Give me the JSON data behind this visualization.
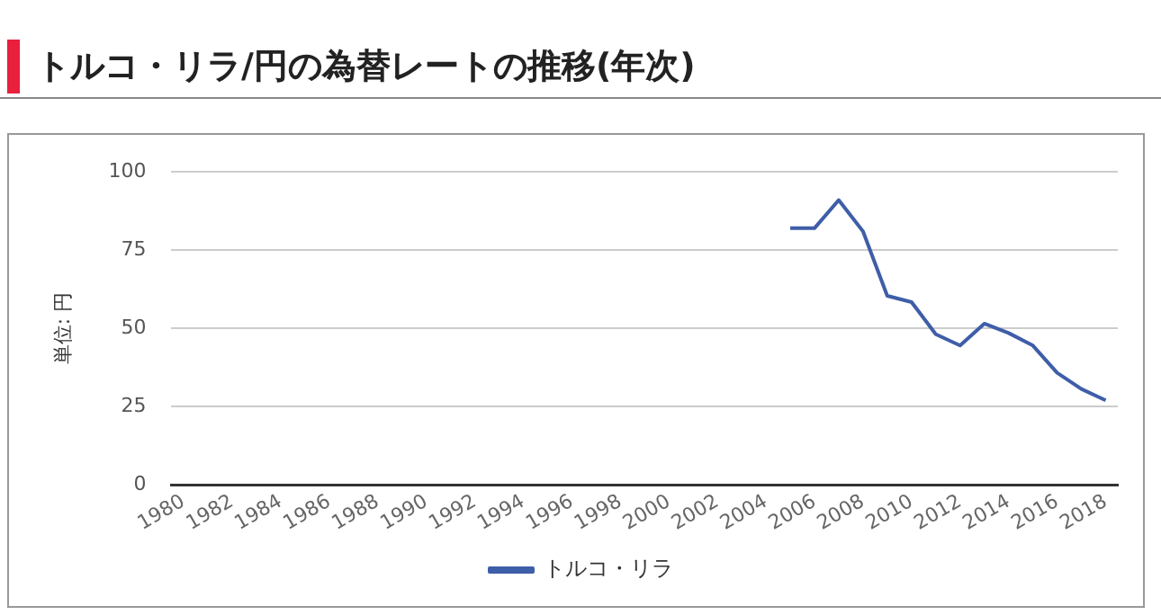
{
  "chart_data": {
    "type": "line",
    "title": "トルコ・リラ/円の為替レートの推移(年次)",
    "ylabel": "単位: 円",
    "categories": [
      "1980",
      null,
      "1982",
      null,
      "1984",
      null,
      "1986",
      null,
      "1988",
      null,
      "1990",
      null,
      "1992",
      null,
      "1994",
      null,
      "1996",
      null,
      "1998",
      null,
      "2000",
      null,
      "2002",
      null,
      "2004",
      null,
      "2006",
      null,
      "2008",
      null,
      "2010",
      null,
      "2012",
      null,
      "2014",
      null,
      "2016",
      null,
      "2018"
    ],
    "series": [
      {
        "name": "トルコ・リラ",
        "color": "#3f5ea8",
        "values": [
          null,
          null,
          null,
          null,
          null,
          null,
          null,
          null,
          null,
          null,
          null,
          null,
          null,
          null,
          null,
          null,
          null,
          null,
          null,
          null,
          null,
          null,
          null,
          null,
          null,
          82,
          82,
          91,
          81,
          60.4,
          58.4,
          48.1,
          44.5,
          51.5,
          48.5,
          44.5,
          35.8,
          30.6,
          27
        ]
      }
    ],
    "ylim": [
      0,
      100
    ],
    "yticks": [
      0,
      25,
      50,
      75,
      100
    ],
    "grid": "y",
    "legend": "bottom",
    "marker": "none",
    "line_style": "solid"
  }
}
